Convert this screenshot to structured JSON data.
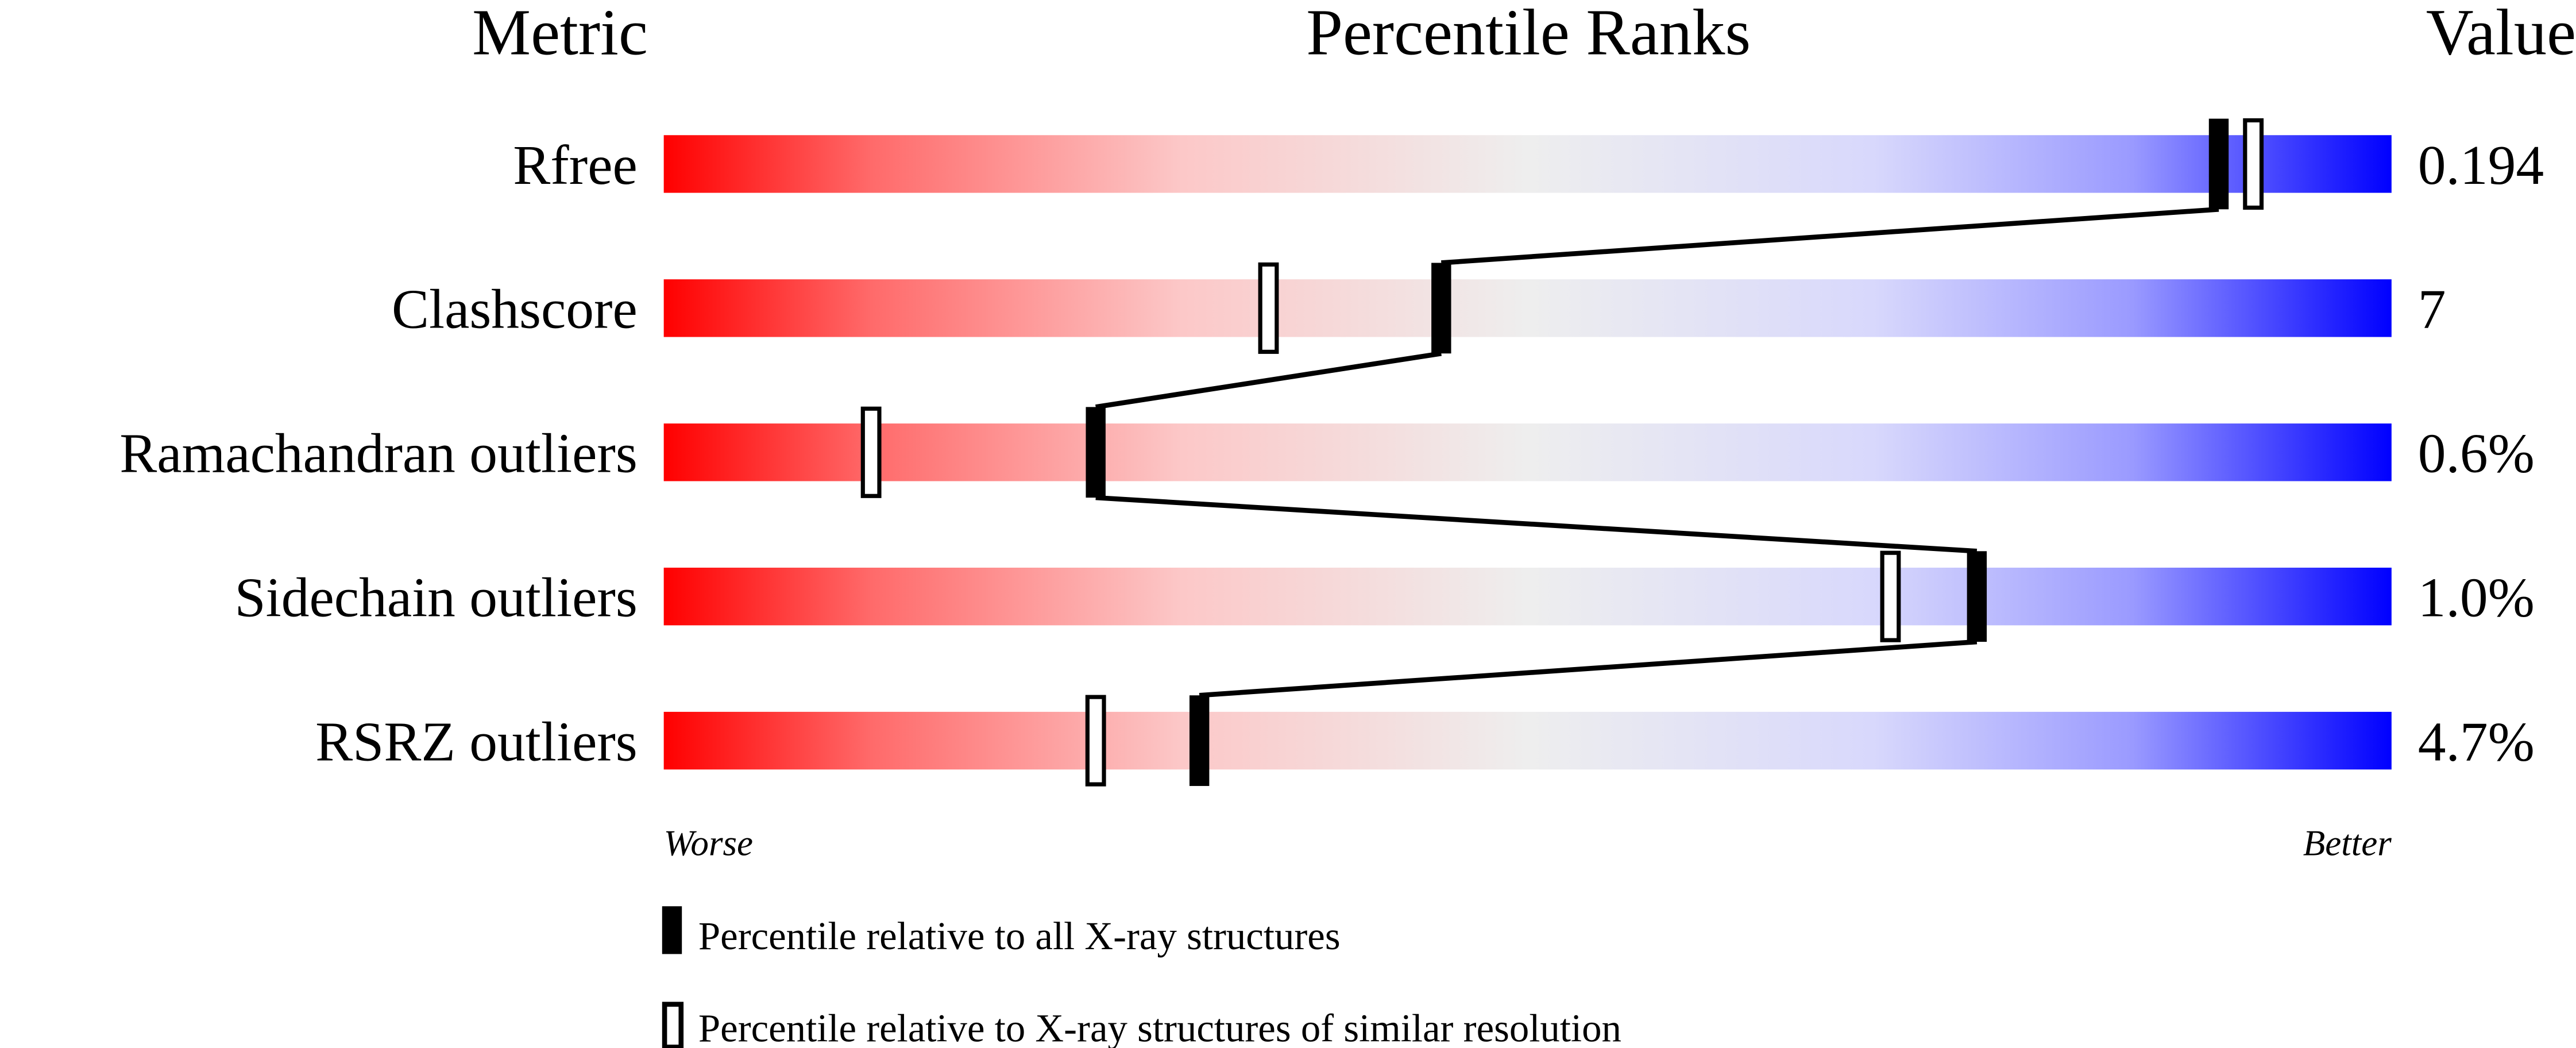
{
  "chart_data": {
    "type": "bar",
    "headers": {
      "metric": "Metric",
      "percentile": "Percentile Ranks",
      "value": "Value"
    },
    "xlim": [
      0,
      100
    ],
    "axis_labels": {
      "worse": "Worse",
      "better": "Better"
    },
    "gradient_colors": [
      "#ff0000",
      "#eeeeee",
      "#0000ff"
    ],
    "rows": [
      {
        "metric": "Rfree",
        "value": "0.194",
        "percentile_all": 90,
        "percentile_similar": 92
      },
      {
        "metric": "Clashscore",
        "value": "7",
        "percentile_all": 45,
        "percentile_similar": 35
      },
      {
        "metric": "Ramachandran outliers",
        "value": "0.6%",
        "percentile_all": 25,
        "percentile_similar": 12
      },
      {
        "metric": "Sidechain outliers",
        "value": "1.0%",
        "percentile_all": 76,
        "percentile_similar": 71
      },
      {
        "metric": "RSRZ outliers",
        "value": "4.7%",
        "percentile_all": 31,
        "percentile_similar": 25
      }
    ],
    "legend": {
      "all": "Percentile relative to all X-ray structures",
      "similar": "Percentile relative to X-ray structures of similar resolution"
    }
  }
}
